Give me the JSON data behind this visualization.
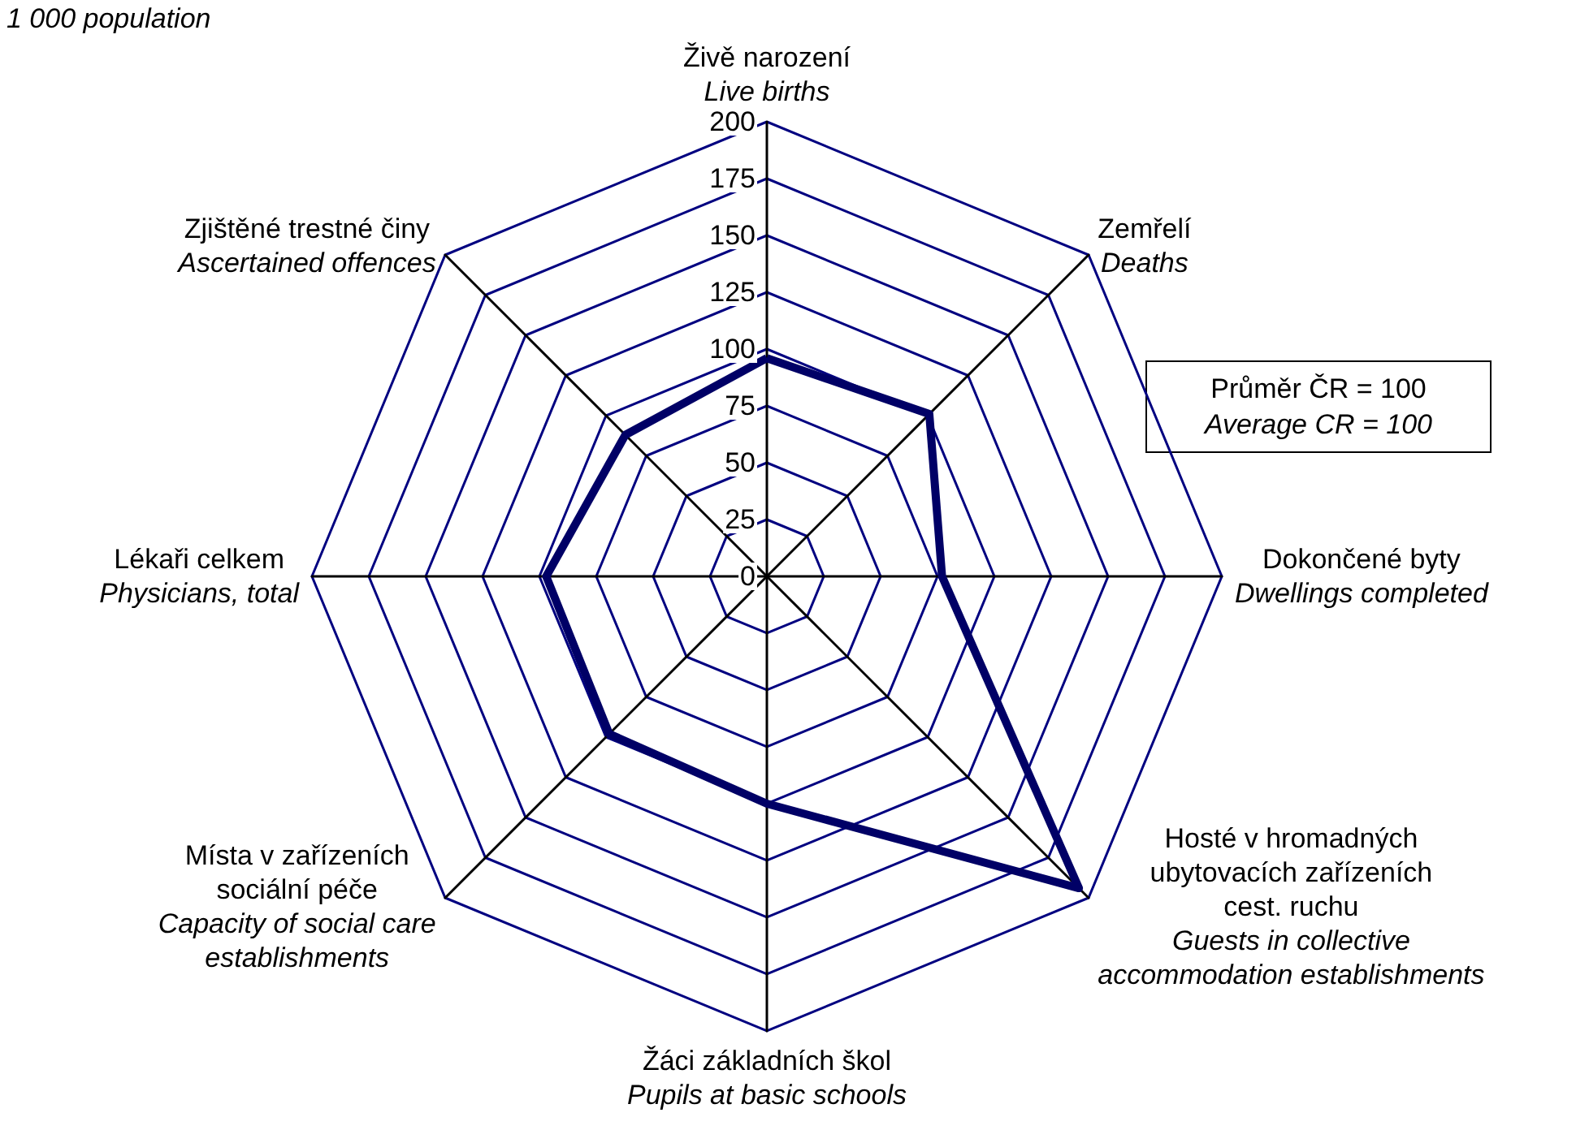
{
  "chart_data": {
    "type": "radar",
    "subtitle": "1 000 population",
    "categories": [
      "Živě narození\n\nLive births",
      "Zemřelí\n\nDeaths",
      "Dokončené byty\n\nDwellings completed",
      "Hosté v hromadných\nubytovacích zařízeních\ncest. ruchu\n\nGuests in collective\naccommodation establishments",
      "Žáci základních škol\n\nPupils at basic schools",
      "Místa v zařízeních\nsociální péče\n\nCapacity of social care\nestablishments",
      "Lékaři celkem\n\nPhysicians, total",
      "Zjištěné trestné činy\n\nAscertained offences"
    ],
    "series": [
      {
        "color": "#000066",
        "values": [
          96,
          101,
          77,
          194,
          100,
          98,
          97,
          88
        ]
      }
    ],
    "ylim": [
      0,
      200
    ],
    "yticks": [
      0,
      25,
      50,
      75,
      100,
      125,
      150,
      175,
      200
    ],
    "annotations": [
      "Průměr ČR = 100\n\nAverage CR = 100"
    ],
    "marker": "none"
  }
}
